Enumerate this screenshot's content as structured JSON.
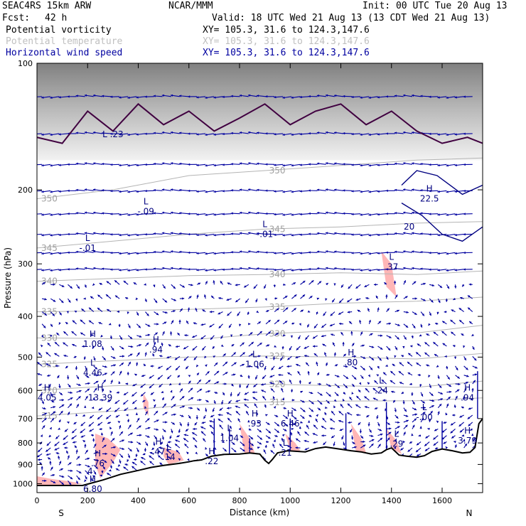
{
  "header": {
    "model": "SEAC4RS 15km ARW",
    "institution": "NCAR/MMM",
    "init": "Init: 00 UTC Tue 20 Aug 13",
    "fcst_label": "Fcst:",
    "fcst_value": "42 h",
    "valid": "Valid: 18 UTC Wed 21 Aug 13 (13 CDT Wed 21 Aug 13)",
    "fields": [
      {
        "name": "Potential vorticity",
        "coords": "XY= 105.3, 31.6 to 124.3,147.6",
        "color": "#000000"
      },
      {
        "name": "Potential temperature",
        "coords": "XY= 105.3, 31.6 to 124.3,147.6",
        "color": "#c0c0c0"
      },
      {
        "name": "Horizontal wind speed",
        "coords": "XY= 105.3, 31.6 to 124.3,147.6",
        "color": "#0000a0"
      }
    ]
  },
  "chart_data": {
    "type": "cross-section",
    "xlabel": "Distance (km)",
    "ylabel": "Pressure (hPa)",
    "xlim": [
      0,
      1760
    ],
    "ylim": [
      1050,
      100
    ],
    "y_log_scale": true,
    "x_ticks": [
      0,
      200,
      400,
      600,
      800,
      1000,
      1200,
      1400,
      1600
    ],
    "y_ticks": [
      100,
      200,
      300,
      400,
      500,
      600,
      700,
      800,
      900,
      1000
    ],
    "end_labels": {
      "left": "S",
      "right": "N"
    },
    "colors": {
      "terrain": "#000000",
      "pv_shading": "#ffb6b6",
      "theta": "#b4b4b4",
      "wind": "#0000a0",
      "tropopause": "#400040",
      "labels": "#000080"
    },
    "terrain": [
      [
        0,
        1010
      ],
      [
        80,
        1010
      ],
      [
        180,
        1010
      ],
      [
        260,
        980
      ],
      [
        330,
        950
      ],
      [
        400,
        930
      ],
      [
        450,
        915
      ],
      [
        500,
        905
      ],
      [
        560,
        895
      ],
      [
        600,
        887
      ],
      [
        620,
        882
      ],
      [
        650,
        878
      ],
      [
        690,
        860
      ],
      [
        740,
        852
      ],
      [
        800,
        850
      ],
      [
        840,
        845
      ],
      [
        880,
        850
      ],
      [
        900,
        880
      ],
      [
        915,
        895
      ],
      [
        930,
        875
      ],
      [
        950,
        845
      ],
      [
        990,
        835
      ],
      [
        1060,
        840
      ],
      [
        1100,
        825
      ],
      [
        1140,
        818
      ],
      [
        1200,
        828
      ],
      [
        1240,
        835
      ],
      [
        1280,
        840
      ],
      [
        1320,
        850
      ],
      [
        1360,
        845
      ],
      [
        1380,
        830
      ],
      [
        1400,
        822
      ],
      [
        1430,
        855
      ],
      [
        1460,
        860
      ],
      [
        1500,
        865
      ],
      [
        1530,
        858
      ],
      [
        1560,
        838
      ],
      [
        1600,
        827
      ],
      [
        1640,
        835
      ],
      [
        1680,
        845
      ],
      [
        1710,
        842
      ],
      [
        1730,
        820
      ],
      [
        1745,
        720
      ],
      [
        1760,
        700
      ]
    ],
    "theta_contours": [
      {
        "label": "315",
        "points": [
          [
            0,
            690
          ],
          [
            300,
            672
          ],
          [
            600,
            650
          ],
          [
            900,
            640
          ],
          [
            1200,
            636
          ],
          [
            1500,
            635
          ],
          [
            1760,
            625
          ]
        ]
      },
      {
        "label": "320",
        "points": [
          [
            0,
            600
          ],
          [
            300,
            585
          ],
          [
            600,
            578
          ],
          [
            900,
            580
          ],
          [
            1200,
            585
          ],
          [
            1500,
            590
          ],
          [
            1760,
            570
          ]
        ]
      },
      {
        "label": "325",
        "points": [
          [
            0,
            520
          ],
          [
            300,
            510
          ],
          [
            600,
            500
          ],
          [
            900,
            497
          ],
          [
            1200,
            500
          ],
          [
            1500,
            505
          ],
          [
            1760,
            490
          ]
        ]
      },
      {
        "label": "330",
        "points": [
          [
            0,
            450
          ],
          [
            300,
            452
          ],
          [
            600,
            455
          ],
          [
            900,
            440
          ],
          [
            1200,
            432
          ],
          [
            1500,
            438
          ],
          [
            1760,
            420
          ]
        ]
      },
      {
        "label": "335",
        "points": [
          [
            0,
            390
          ],
          [
            300,
            388
          ],
          [
            600,
            385
          ],
          [
            900,
            380
          ],
          [
            1200,
            372
          ],
          [
            1500,
            368
          ],
          [
            1760,
            360
          ]
        ]
      },
      {
        "label": "340",
        "points": [
          [
            0,
            330
          ],
          [
            300,
            325
          ],
          [
            600,
            320
          ],
          [
            900,
            318
          ],
          [
            1200,
            315
          ],
          [
            1500,
            318
          ],
          [
            1760,
            312
          ]
        ]
      },
      {
        "label": "345",
        "points": [
          [
            0,
            275
          ],
          [
            300,
            265
          ],
          [
            600,
            255
          ],
          [
            900,
            248
          ],
          [
            1200,
            245
          ],
          [
            1500,
            240
          ],
          [
            1760,
            238
          ]
        ]
      },
      {
        "label": "350",
        "points": [
          [
            0,
            210
          ],
          [
            300,
            200
          ],
          [
            600,
            185
          ],
          [
            900,
            180
          ],
          [
            1200,
            175
          ],
          [
            1500,
            170
          ],
          [
            1760,
            168
          ]
        ]
      }
    ],
    "pv_shaded_regions": [
      [
        [
          0,
          960
        ],
        [
          60,
          975
        ],
        [
          120,
          985
        ],
        [
          180,
          1000
        ],
        [
          120,
          1010
        ],
        [
          0,
          1010
        ]
      ],
      [
        [
          230,
          760
        ],
        [
          280,
          780
        ],
        [
          330,
          830
        ],
        [
          300,
          890
        ],
        [
          250,
          970
        ],
        [
          230,
          900
        ]
      ],
      [
        [
          420,
          610
        ],
        [
          440,
          640
        ],
        [
          440,
          690
        ],
        [
          420,
          660
        ]
      ],
      [
        [
          500,
          820
        ],
        [
          560,
          840
        ],
        [
          580,
          880
        ],
        [
          520,
          900
        ],
        [
          500,
          860
        ]
      ],
      [
        [
          800,
          720
        ],
        [
          840,
          780
        ],
        [
          860,
          845
        ],
        [
          820,
          850
        ]
      ],
      [
        [
          980,
          760
        ],
        [
          1020,
          800
        ],
        [
          1040,
          835
        ],
        [
          1000,
          838
        ]
      ],
      [
        [
          1240,
          720
        ],
        [
          1280,
          780
        ],
        [
          1300,
          845
        ],
        [
          1260,
          840
        ]
      ],
      [
        [
          1380,
          740
        ],
        [
          1420,
          790
        ],
        [
          1440,
          850
        ],
        [
          1400,
          825
        ]
      ],
      [
        [
          1360,
          280
        ],
        [
          1400,
          300
        ],
        [
          1420,
          360
        ],
        [
          1380,
          340
        ]
      ]
    ],
    "tropopause": [
      [
        0,
        150
      ],
      [
        100,
        155
      ],
      [
        200,
        130
      ],
      [
        300,
        145
      ],
      [
        400,
        125
      ],
      [
        500,
        140
      ],
      [
        600,
        130
      ],
      [
        700,
        145
      ],
      [
        800,
        135
      ],
      [
        900,
        125
      ],
      [
        1000,
        140
      ],
      [
        1100,
        130
      ],
      [
        1200,
        125
      ],
      [
        1300,
        140
      ],
      [
        1400,
        130
      ],
      [
        1500,
        145
      ],
      [
        1600,
        155
      ],
      [
        1700,
        150
      ],
      [
        1760,
        155
      ]
    ],
    "tropopause_label": {
      "text": "L .23",
      "at": [
        300,
        150
      ]
    },
    "extrema_labels": [
      {
        "kind": "L",
        "value": "-.01",
        "at": [
          200,
          275
        ]
      },
      {
        "kind": "L",
        "value": "-.09",
        "at": [
          430,
          225
        ]
      },
      {
        "kind": "L",
        "value": "-.01",
        "at": [
          900,
          255
        ]
      },
      {
        "kind": "H",
        "value": "22.5",
        "at": [
          1550,
          210
        ]
      },
      {
        "kind": "",
        "value": "20",
        "at": [
          1470,
          245
        ]
      },
      {
        "kind": "L",
        "value": ".37",
        "at": [
          1400,
          305
        ]
      },
      {
        "kind": "H",
        "value": "1.08",
        "at": [
          220,
          465
        ]
      },
      {
        "kind": "L",
        "value": "4.46",
        "at": [
          220,
          545
        ]
      },
      {
        "kind": "H",
        "value": ".94",
        "at": [
          470,
          480
        ]
      },
      {
        "kind": "L",
        "value": "1.06",
        "at": [
          860,
          520
        ]
      },
      {
        "kind": "H",
        "value": ".80",
        "at": [
          1240,
          515
        ]
      },
      {
        "kind": "L",
        "value": ".24",
        "at": [
          1360,
          600
        ]
      },
      {
        "kind": "H",
        "value": "4.05",
        "at": [
          40,
          625
        ]
      },
      {
        "kind": "H",
        "value": "13.39",
        "at": [
          250,
          625
        ]
      },
      {
        "kind": "H",
        "value": ".93",
        "at": [
          860,
          720
        ]
      },
      {
        "kind": "H",
        "value": "6.46",
        "at": [
          1000,
          720
        ]
      },
      {
        "kind": "L",
        "value": "-.00",
        "at": [
          1530,
          695
        ]
      },
      {
        "kind": "H",
        "value": ".94",
        "at": [
          1700,
          625
        ]
      },
      {
        "kind": "L",
        "value": "1.04",
        "at": [
          760,
          780
        ]
      },
      {
        "kind": "L",
        "value": ".29",
        "at": [
          1420,
          805
        ]
      },
      {
        "kind": "H",
        "value": "3.79",
        "at": [
          1700,
          790
        ]
      },
      {
        "kind": "H",
        "value": ".47",
        "at": [
          480,
          840
        ]
      },
      {
        "kind": "L",
        "value": ".14",
        "at": [
          520,
          865
        ]
      },
      {
        "kind": "L",
        "value": ".21",
        "at": [
          980,
          845
        ]
      },
      {
        "kind": "H",
        "value": ".22",
        "at": [
          690,
          885
        ]
      },
      {
        "kind": "H",
        "value": ".76",
        "at": [
          240,
          895
        ]
      },
      {
        "kind": "",
        "value": "4",
        "at": [
          210,
          935
        ]
      },
      {
        "kind": "H",
        "value": "6.80",
        "at": [
          220,
          1030
        ]
      }
    ]
  }
}
